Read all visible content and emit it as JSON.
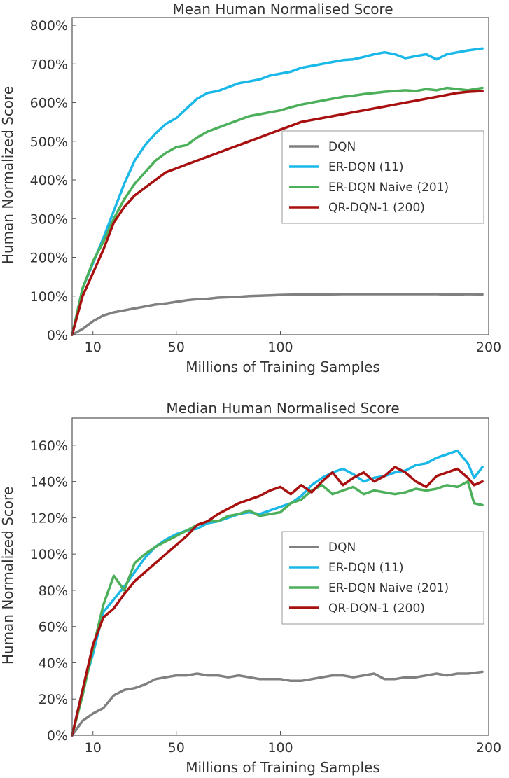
{
  "chart_data": [
    {
      "type": "line",
      "title": "Mean Human Normalised Score",
      "xlabel": "Millions of Training Samples",
      "ylabel": "Human Normalized Score",
      "xlim": [
        0,
        200
      ],
      "ylim": [
        0,
        820
      ],
      "x_ticks": [
        10,
        50,
        100,
        200
      ],
      "x_tick_labels": [
        "10",
        "50",
        "100",
        "200"
      ],
      "y_ticks": [
        0,
        100,
        200,
        300,
        400,
        500,
        600,
        700,
        800
      ],
      "y_tick_labels": [
        "0%",
        "100%",
        "200%",
        "300%",
        "400%",
        "500%",
        "600%",
        "700%",
        "800%"
      ],
      "legend_position": "center-right",
      "series": [
        {
          "name": "DQN",
          "color": "#808080",
          "x": [
            0,
            5,
            10,
            15,
            20,
            25,
            30,
            35,
            40,
            45,
            50,
            55,
            60,
            65,
            70,
            75,
            80,
            85,
            90,
            95,
            100,
            110,
            120,
            130,
            140,
            150,
            160,
            170,
            175,
            180,
            185,
            190,
            197
          ],
          "y": [
            0,
            15,
            35,
            50,
            58,
            63,
            68,
            73,
            78,
            81,
            85,
            89,
            92,
            93,
            96,
            97,
            98,
            100,
            101,
            102,
            103,
            104,
            104,
            105,
            105,
            105,
            105,
            105,
            105,
            104,
            104,
            105,
            104
          ]
        },
        {
          "name": "ER-DQN (11)",
          "color": "#1ab8e8",
          "x": [
            0,
            5,
            10,
            15,
            20,
            25,
            30,
            35,
            40,
            45,
            50,
            55,
            60,
            65,
            70,
            75,
            80,
            85,
            90,
            95,
            100,
            105,
            110,
            115,
            120,
            125,
            130,
            135,
            140,
            145,
            150,
            155,
            160,
            165,
            170,
            175,
            180,
            185,
            190,
            197
          ],
          "y": [
            0,
            120,
            185,
            250,
            320,
            390,
            450,
            490,
            520,
            545,
            560,
            585,
            610,
            625,
            630,
            640,
            650,
            655,
            660,
            670,
            675,
            680,
            690,
            695,
            700,
            705,
            710,
            712,
            718,
            725,
            730,
            725,
            715,
            720,
            725,
            712,
            725,
            730,
            735,
            740
          ]
        },
        {
          "name": "ER-DQN Naive (201)",
          "color": "#4caf5a",
          "x": [
            0,
            5,
            10,
            15,
            20,
            25,
            30,
            35,
            40,
            45,
            50,
            55,
            60,
            65,
            70,
            75,
            80,
            85,
            90,
            95,
            100,
            105,
            110,
            115,
            120,
            125,
            130,
            135,
            140,
            145,
            150,
            155,
            160,
            165,
            170,
            175,
            180,
            185,
            190,
            197
          ],
          "y": [
            0,
            120,
            190,
            240,
            300,
            350,
            390,
            420,
            450,
            470,
            485,
            490,
            510,
            525,
            535,
            545,
            555,
            565,
            570,
            575,
            580,
            588,
            595,
            600,
            605,
            610,
            615,
            618,
            622,
            625,
            628,
            630,
            632,
            630,
            635,
            632,
            638,
            635,
            632,
            638
          ]
        },
        {
          "name": "QR-DQN-1 (200)",
          "color": "#a80f0f",
          "x": [
            0,
            5,
            10,
            15,
            20,
            25,
            30,
            35,
            40,
            45,
            50,
            55,
            60,
            65,
            70,
            75,
            80,
            85,
            90,
            95,
            100,
            105,
            110,
            115,
            120,
            125,
            130,
            135,
            140,
            145,
            150,
            155,
            160,
            165,
            170,
            175,
            180,
            185,
            190,
            197
          ],
          "y": [
            0,
            100,
            160,
            220,
            290,
            330,
            360,
            380,
            400,
            420,
            430,
            440,
            450,
            460,
            470,
            480,
            490,
            500,
            510,
            520,
            530,
            540,
            550,
            555,
            560,
            565,
            570,
            575,
            580,
            585,
            590,
            595,
            600,
            605,
            610,
            615,
            620,
            625,
            628,
            630
          ]
        }
      ]
    },
    {
      "type": "line",
      "title": "Median Human Normalised Score",
      "xlabel": "Millions of Training Samples",
      "ylabel": "Human Normalized Score",
      "xlim": [
        0,
        200
      ],
      "ylim": [
        0,
        175
      ],
      "x_ticks": [
        10,
        50,
        100,
        200
      ],
      "x_tick_labels": [
        "10",
        "50",
        "100",
        "200"
      ],
      "y_ticks": [
        0,
        20,
        40,
        60,
        80,
        100,
        120,
        140,
        160
      ],
      "y_tick_labels": [
        "0%",
        "20%",
        "40%",
        "60%",
        "80%",
        "100%",
        "120%",
        "140%",
        "160%"
      ],
      "legend_position": "center-right",
      "series": [
        {
          "name": "DQN",
          "color": "#808080",
          "x": [
            0,
            5,
            10,
            15,
            20,
            25,
            30,
            35,
            40,
            45,
            50,
            55,
            60,
            65,
            70,
            75,
            80,
            85,
            90,
            95,
            100,
            105,
            110,
            115,
            120,
            125,
            130,
            135,
            140,
            145,
            150,
            155,
            160,
            165,
            170,
            175,
            180,
            185,
            190,
            197
          ],
          "y": [
            0,
            8,
            12,
            15,
            22,
            25,
            26,
            28,
            31,
            32,
            33,
            33,
            34,
            33,
            33,
            32,
            33,
            32,
            31,
            31,
            31,
            30,
            30,
            31,
            32,
            33,
            33,
            32,
            33,
            34,
            31,
            31,
            32,
            32,
            33,
            34,
            33,
            34,
            34,
            35
          ]
        },
        {
          "name": "ER-DQN (11)",
          "color": "#1ab8e8",
          "x": [
            0,
            5,
            10,
            15,
            20,
            25,
            30,
            35,
            40,
            45,
            50,
            55,
            60,
            65,
            70,
            75,
            80,
            85,
            90,
            95,
            100,
            105,
            110,
            115,
            120,
            125,
            130,
            135,
            140,
            145,
            150,
            155,
            160,
            165,
            170,
            175,
            180,
            185,
            190,
            193,
            197
          ],
          "y": [
            0,
            25,
            45,
            68,
            75,
            82,
            90,
            98,
            104,
            108,
            111,
            113,
            114,
            117,
            118,
            120,
            122,
            123,
            122,
            124,
            126,
            128,
            132,
            138,
            142,
            145,
            147,
            144,
            140,
            142,
            143,
            145,
            146,
            149,
            150,
            153,
            155,
            157,
            150,
            142,
            148
          ]
        },
        {
          "name": "ER-DQN Naive (201)",
          "color": "#4caf5a",
          "x": [
            0,
            5,
            10,
            15,
            20,
            25,
            30,
            35,
            40,
            45,
            50,
            55,
            60,
            65,
            70,
            75,
            80,
            85,
            90,
            95,
            100,
            105,
            110,
            115,
            120,
            125,
            130,
            135,
            140,
            145,
            150,
            155,
            160,
            165,
            170,
            175,
            180,
            185,
            190,
            193,
            197
          ],
          "y": [
            0,
            22,
            48,
            72,
            88,
            80,
            95,
            100,
            104,
            107,
            110,
            113,
            116,
            118,
            118,
            121,
            122,
            124,
            121,
            122,
            123,
            128,
            130,
            135,
            138,
            133,
            135,
            137,
            133,
            135,
            134,
            133,
            134,
            136,
            135,
            136,
            138,
            137,
            140,
            128,
            127
          ]
        },
        {
          "name": "QR-DQN-1 (200)",
          "color": "#a80f0f",
          "x": [
            0,
            5,
            10,
            15,
            20,
            25,
            30,
            35,
            40,
            45,
            50,
            55,
            60,
            65,
            70,
            75,
            80,
            85,
            90,
            95,
            100,
            105,
            110,
            115,
            120,
            125,
            130,
            135,
            140,
            145,
            150,
            155,
            160,
            165,
            170,
            175,
            180,
            185,
            190,
            193,
            197
          ],
          "y": [
            0,
            25,
            50,
            65,
            70,
            78,
            85,
            90,
            95,
            100,
            105,
            110,
            116,
            118,
            122,
            125,
            128,
            130,
            132,
            135,
            137,
            133,
            138,
            134,
            140,
            145,
            138,
            142,
            145,
            140,
            143,
            148,
            145,
            140,
            137,
            143,
            145,
            147,
            142,
            138,
            140
          ]
        }
      ]
    }
  ]
}
